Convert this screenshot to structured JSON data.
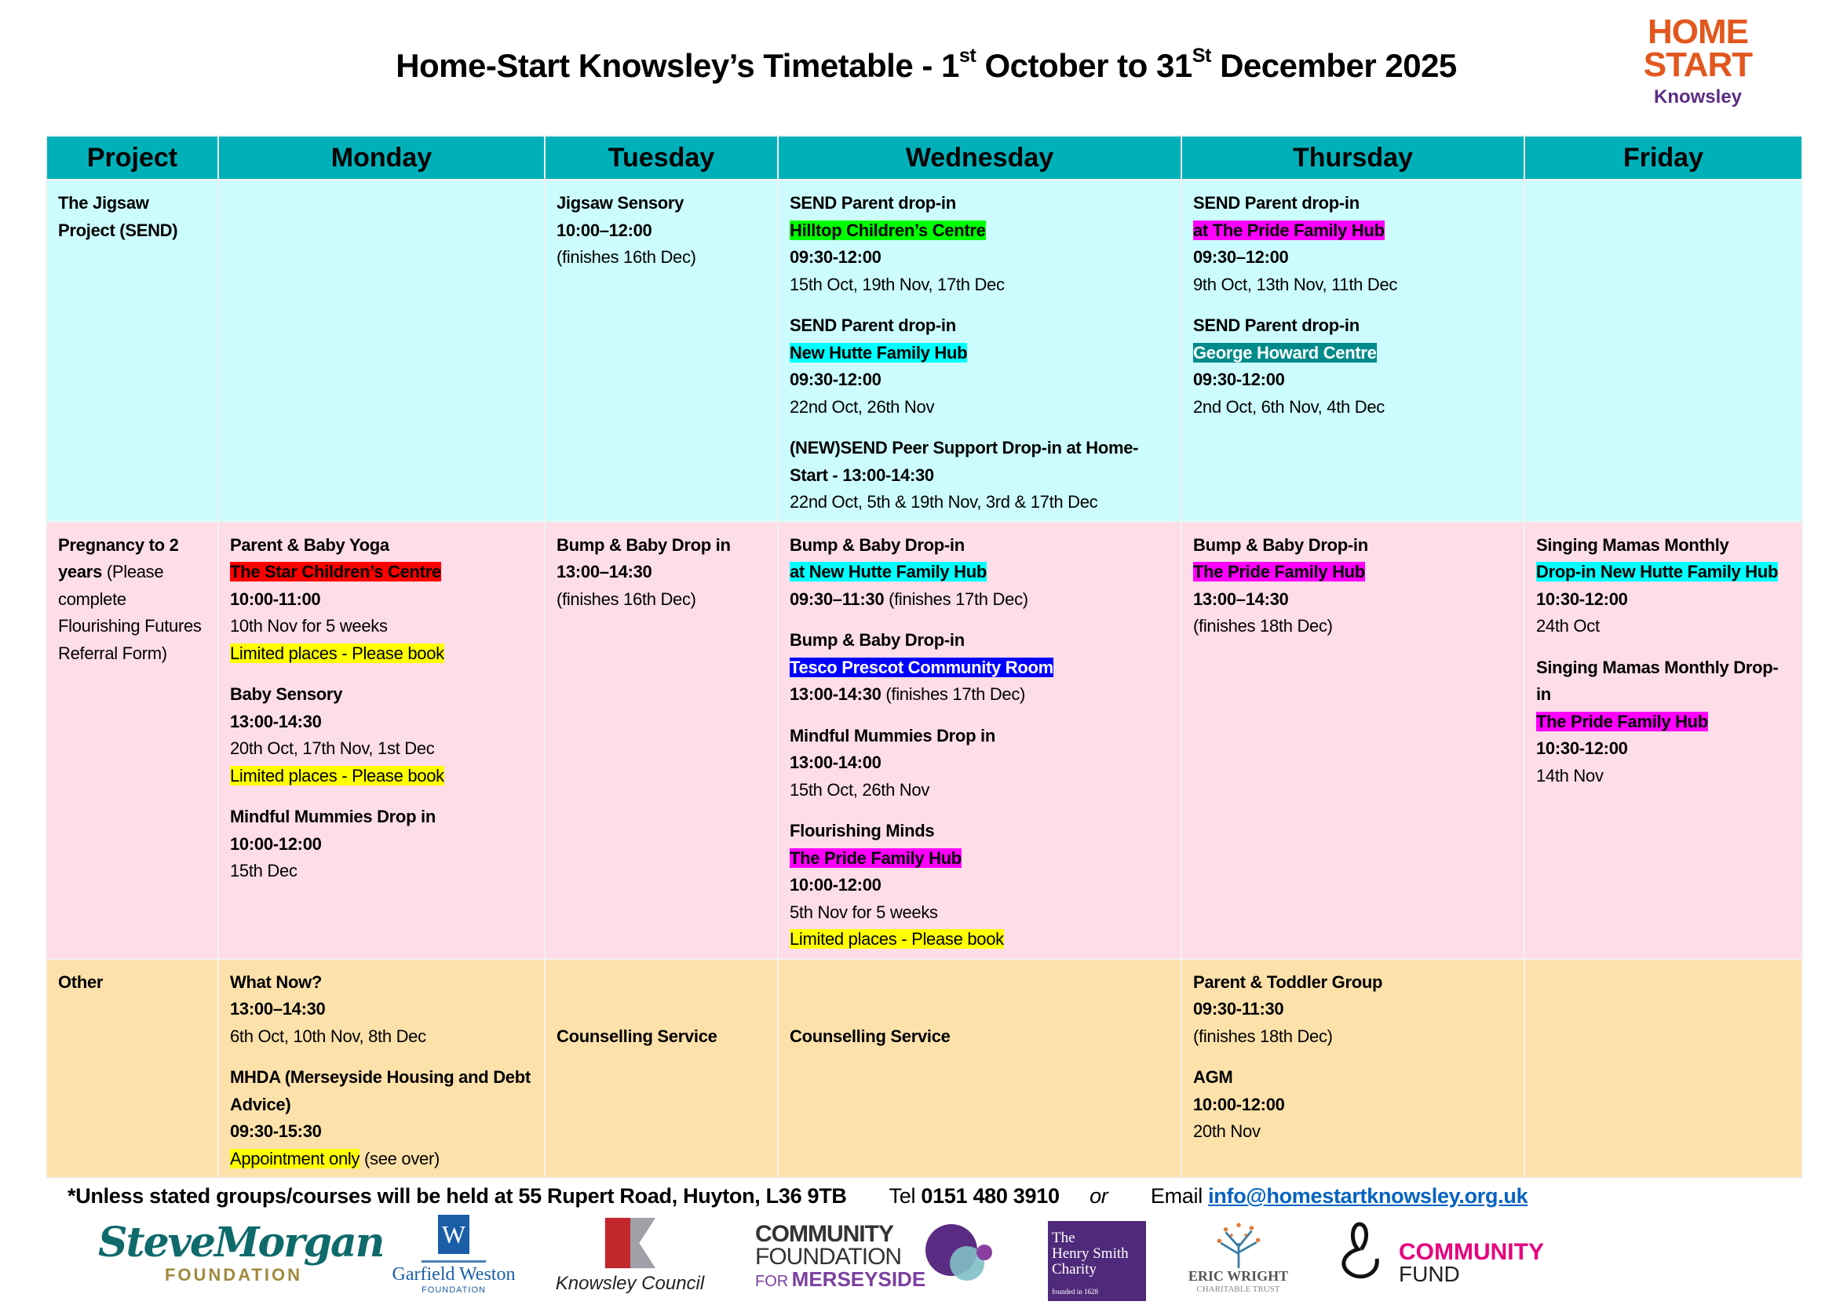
{
  "title": "Home-Start Knowsley’s Timetable - 1st October to 31St December 2025",
  "logo": {
    "line1": "HOME",
    "line2": "START",
    "line3": "Knowsley",
    "colors": {
      "orange": "#e2571e",
      "purple": "#5b2c83"
    }
  },
  "table": {
    "headers": [
      "Project",
      "Monday",
      "Tuesday",
      "Wednesday",
      "Thursday",
      "Friday"
    ],
    "colors": {
      "header": "#00b0b9",
      "send_row": "#ccfcfd",
      "pregnancy_row": "#fddde8",
      "other_row": "#fde1aa"
    },
    "rows": [
      {
        "project": [
          {
            "t": "The Jigsaw Project (SEND)",
            "b": true
          }
        ],
        "cells": [
          [],
          [
            [
              [
                {
                  "t": "Jigsaw Sensory",
                  "b": true
                }
              ],
              [
                {
                  "t": "10:00–12:00",
                  "b": true
                }
              ],
              [
                {
                  "t": "(finishes 16th Dec)"
                }
              ]
            ]
          ],
          [
            [
              [
                {
                  "t": "SEND Parent drop-in",
                  "b": true
                }
              ],
              [
                {
                  "t": " Hilltop Children’s Centre",
                  "b": true,
                  "hl": "#00ff00"
                }
              ],
              [
                {
                  "t": "09:30-12:00",
                  "b": true
                }
              ],
              [
                {
                  "t": "15th Oct, 19th Nov, 17th Dec"
                }
              ]
            ],
            [
              [
                {
                  "t": "SEND Parent drop-in",
                  "b": true
                }
              ],
              [
                {
                  "t": "New Hutte Family Hub",
                  "b": true,
                  "hl": "#00ffff"
                }
              ],
              [
                {
                  "t": "09:30-12:00",
                  "b": true
                }
              ],
              [
                {
                  "t": "22nd Oct, 26th Nov"
                }
              ]
            ],
            [
              [
                {
                  "t": "(NEW)SEND Peer Support Drop-in at Home-Start - 13:00-14:30",
                  "b": true
                }
              ],
              [
                {
                  "t": "22nd Oct, 5th & 19th Nov, 3rd & 17th Dec"
                }
              ]
            ]
          ],
          [
            [
              [
                {
                  "t": "SEND Parent drop-in",
                  "b": true
                }
              ],
              [
                {
                  "t": "at The Pride Family Hub",
                  "b": true,
                  "hl": "#ff00ff"
                }
              ],
              [
                {
                  "t": "09:30–12:00",
                  "b": true
                }
              ],
              [
                {
                  "t": "9th Oct, 13th Nov, 11th Dec"
                }
              ]
            ],
            [
              [
                {
                  "t": "SEND Parent drop-in",
                  "b": true
                }
              ],
              [
                {
                  "t": "George Howard Centre",
                  "b": true,
                  "hl": "#008b8b",
                  "fg": "#ffffff"
                }
              ],
              [
                {
                  "t": "09:30-12:00",
                  "b": true
                }
              ],
              [
                {
                  "t": "2nd Oct, 6th Nov, 4th Dec"
                }
              ]
            ]
          ],
          []
        ]
      },
      {
        "project": [
          {
            "t": "Pregnancy to 2 years",
            "b": true
          },
          {
            "t": " (Please complete Flourishing Futures Referral Form)"
          }
        ],
        "cells": [
          [
            [
              [
                {
                  "t": "Parent & Baby Yoga",
                  "b": true
                }
              ],
              [
                {
                  "t": "The Star Children’s Centre",
                  "b": true,
                  "hl": "#ff0000"
                }
              ],
              [
                {
                  "t": "10:00-11:00",
                  "b": true
                }
              ],
              [
                {
                  "t": "10th Nov for 5 weeks"
                }
              ],
              [
                {
                  "t": "Limited places - Please book",
                  "hl": "#ffff00"
                }
              ]
            ],
            [
              [
                {
                  "t": "Baby Sensory",
                  "b": true
                }
              ],
              [
                {
                  "t": "13:00-14:30",
                  "b": true
                }
              ],
              [
                {
                  "t": "20th Oct, 17th Nov, 1st Dec"
                }
              ],
              [
                {
                  "t": "Limited places - Please book",
                  "hl": "#ffff00"
                }
              ]
            ],
            [
              [
                {
                  "t": "Mindful Mummies Drop in",
                  "b": true
                }
              ],
              [
                {
                  "t": "10:00-12:00",
                  "b": true
                }
              ],
              [
                {
                  "t": "15th Dec"
                }
              ]
            ]
          ],
          [
            [
              [
                {
                  "t": "Bump & Baby Drop in",
                  "b": true
                }
              ],
              [
                {
                  "t": "13:00–14:30",
                  "b": true
                }
              ],
              [
                {
                  "t": "(finishes 16th Dec)"
                }
              ]
            ]
          ],
          [
            [
              [
                {
                  "t": "Bump & Baby Drop-in",
                  "b": true
                }
              ],
              [
                {
                  "t": "at New Hutte Family Hub",
                  "b": true,
                  "hl": "#00ffff"
                }
              ],
              [
                {
                  "t": "09:30–11:30",
                  "b": true
                },
                {
                  "t": "   (finishes 17th Dec)"
                }
              ]
            ],
            [
              [
                {
                  "t": "Bump & Baby Drop-in",
                  "b": true
                }
              ],
              [
                {
                  "t": "Tesco Prescot Community Room",
                  "b": true,
                  "hl": "#0000ff",
                  "fg": "#ffffff"
                }
              ],
              [
                {
                  "t": "13:00-14:30",
                  "b": true
                },
                {
                  "t": "  (finishes 17th Dec)"
                }
              ]
            ],
            [
              [
                {
                  "t": "Mindful Mummies Drop in",
                  "b": true
                }
              ],
              [
                {
                  "t": "13:00-14:00",
                  "b": true
                }
              ],
              [
                {
                  "t": "15th Oct, 26th Nov"
                }
              ]
            ],
            [
              [
                {
                  "t": "Flourishing Minds",
                  "b": true
                }
              ],
              [
                {
                  "t": "The Pride Family Hub",
                  "b": true,
                  "hl": "#ff00ff"
                }
              ],
              [
                {
                  "t": "10:00-12:00",
                  "b": true
                }
              ],
              [
                {
                  "t": "5th Nov for 5 weeks"
                }
              ],
              [
                {
                  "t": "Limited places - Please book",
                  "hl": "#ffff00"
                }
              ]
            ]
          ],
          [
            [
              [
                {
                  "t": "Bump & Baby Drop-in",
                  "b": true
                }
              ],
              [
                {
                  "t": " The Pride Family Hub",
                  "b": true,
                  "hl": "#ff00ff"
                }
              ],
              [
                {
                  "t": "13:00–14:30",
                  "b": true
                }
              ],
              [
                {
                  "t": "(finishes 18th Dec)"
                }
              ]
            ]
          ],
          [
            [
              [
                {
                  "t": "Singing Mamas Monthly",
                  "b": true
                }
              ],
              [
                {
                  "t": "Drop-in New Hutte  Family Hub",
                  "b": true,
                  "hl": "#00ffff"
                }
              ],
              [
                {
                  "t": "10:30-12:00",
                  "b": true
                }
              ],
              [
                {
                  "t": "24th Oct"
                }
              ]
            ],
            [
              [
                {
                  "t": "Singing Mamas Monthly Drop- in",
                  "b": true
                }
              ],
              [
                {
                  "t": "The Pride Family Hub",
                  "b": true,
                  "hl": "#ff00ff"
                }
              ],
              [
                {
                  "t": "10:30-12:00",
                  "b": true
                }
              ],
              [
                {
                  "t": "14th Nov"
                }
              ]
            ]
          ]
        ]
      },
      {
        "project": [
          {
            "t": "Other",
            "b": true
          }
        ],
        "cells": [
          [
            [
              [
                {
                  "t": "What Now?",
                  "b": true
                }
              ],
              [
                {
                  "t": "13:00–14:30",
                  "b": true
                }
              ],
              [
                {
                  "t": "6th Oct, 10th Nov, 8th Dec"
                }
              ]
            ],
            [
              [
                {
                  "t": "MHDA (Merseyside Housing and Debt Advice)",
                  "b": true
                }
              ],
              [
                {
                  "t": "09:30-15:30",
                  "b": true
                }
              ],
              [
                {
                  "t": "Appointment only",
                  "hl": "#ffff00"
                },
                {
                  "t": " (see over)"
                }
              ]
            ]
          ],
          [
            [
              [
                {
                  "t": "Counselling Service",
                  "b": true
                }
              ]
            ]
          ],
          [
            [
              [
                {
                  "t": "Counselling Service",
                  "b": true
                }
              ]
            ]
          ],
          [
            [
              [
                {
                  "t": "Parent & Toddler Group",
                  "b": true
                }
              ],
              [
                {
                  "t": "09:30-11:30",
                  "b": true
                }
              ],
              [
                {
                  "t": "(finishes 18th Dec)"
                }
              ]
            ],
            [
              [
                {
                  "t": "AGM",
                  "b": true
                }
              ],
              [
                {
                  "t": "10:00-12:00",
                  "b": true
                }
              ],
              [
                {
                  "t": "20th Nov"
                }
              ]
            ]
          ],
          []
        ]
      }
    ]
  },
  "footer": {
    "note": "*Unless stated groups/courses will be held at 55 Rupert Road, Huyton, L36 9TB",
    "tel_label": "Tel",
    "tel": "0151 480 3910",
    "or": "or",
    "email_label": "Email",
    "email": "info@homestartknowsley.org.uk",
    "link_color": "#0563c1"
  },
  "funders": {
    "steve_morgan": {
      "name": "SteveMorgan",
      "sub": "FOUNDATION"
    },
    "garfield_weston": {
      "mark": "W",
      "name": "Garfield Weston",
      "sub": "FOUNDATION"
    },
    "knowsley": {
      "name": "Knowsley Council"
    },
    "community_foundation": {
      "l1": "COMMUNITY",
      "l2": "FOUNDATION",
      "l3a": "FOR",
      "l3b": "MERSEYSIDE"
    },
    "henry_smith": {
      "l1": "The",
      "l2": "Henry Smith",
      "l3": "Charity",
      "l4": "founded in 1628"
    },
    "eric_wright": {
      "l1": "ERIC WRIGHT",
      "l2": "CHARITABLE TRUST"
    },
    "community_fund": {
      "l1": "COMMUNITY",
      "l2": "FUND"
    }
  }
}
